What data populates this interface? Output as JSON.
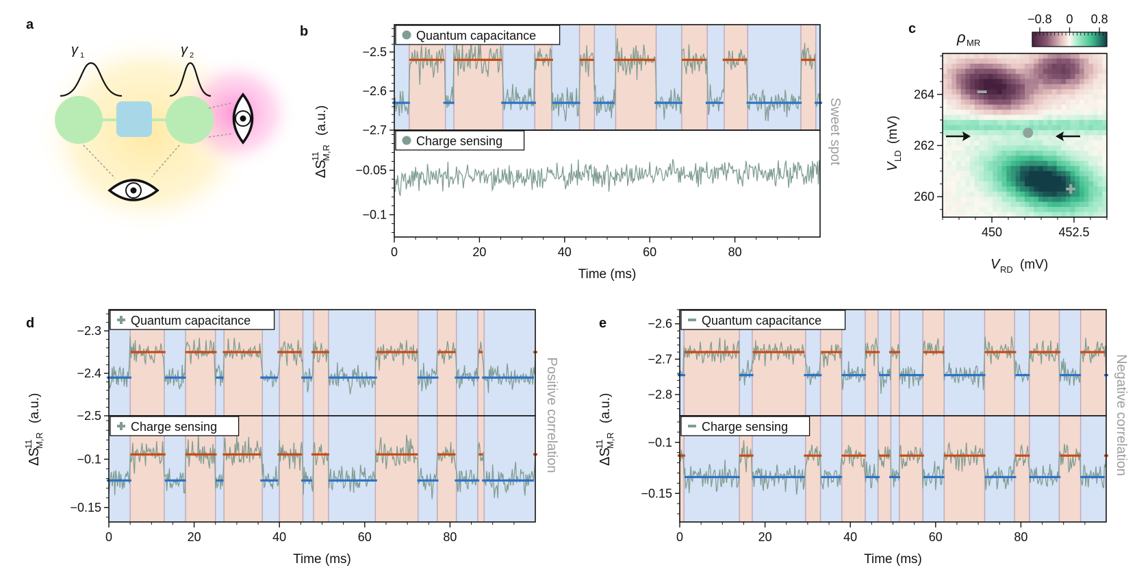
{
  "panel_letters": [
    "a",
    "b",
    "c",
    "d",
    "e"
  ],
  "panel_a": {
    "gamma1": "γ",
    "gamma1_sub": "1",
    "gamma2": "γ",
    "gamma2_sub": "2"
  },
  "colors": {
    "trace": "#7f9d92",
    "level_high": "#c84a14",
    "level_low": "#2c72c7",
    "band_high": "#f4d9cf",
    "band_low": "#d6e2f5",
    "dot_green": "#b9ecb4",
    "square_blue": "#a8d8e8"
  },
  "chart_data": [
    {
      "panel": "b",
      "type": "line",
      "xlabel": "Time (ms)",
      "ylabel": "ΔS",
      "ylabel_sup": "11",
      "ylabel_sub": "M,R",
      "ylabel_unit": "(a.u.)",
      "side_label": "Sweet spot",
      "xlim": [
        0,
        100
      ],
      "xticks": [
        0,
        20,
        40,
        60,
        80
      ],
      "top": {
        "legend": "Quantum capacitance",
        "marker": "circle",
        "ylim": [
          -2.7,
          -2.43
        ],
        "yticks": [
          -2.5,
          -2.6,
          -2.7
        ],
        "ytick_labels": [
          "−2.5",
          "−2.6",
          "−2.7"
        ],
        "level_high": -2.52,
        "level_low": -2.63,
        "noise": 0.03,
        "switch_times": [
          3.5,
          12,
          14,
          25.5,
          33,
          37,
          43.5,
          47,
          52,
          61.5,
          67.5,
          73.5,
          77.5,
          83,
          95.5,
          99
        ],
        "start_state": "low"
      },
      "bottom": {
        "legend": "Charge sensing",
        "marker": "circle",
        "ylim": [
          -0.125,
          -0.005
        ],
        "yticks": [
          -0.05,
          -0.1
        ],
        "ytick_labels": [
          "−0.05",
          "−0.1"
        ],
        "mean_start": -0.06,
        "mean_end": -0.052,
        "noise": 0.01
      }
    },
    {
      "panel": "c",
      "type": "heatmap",
      "title": "ρ",
      "title_sub": "MR",
      "colorbar_ticks": [
        -0.8,
        0,
        0.8
      ],
      "colorbar_tick_labels": [
        "−0.8",
        "0",
        "0.8"
      ],
      "xlabel": "V",
      "xlabel_sub": "RD",
      "xlabel_unit": "(mV)",
      "ylabel": "V",
      "ylabel_sub": "LD",
      "ylabel_unit": "(mV)",
      "xlim": [
        448.5,
        453.5
      ],
      "ylim": [
        259.2,
        265.6
      ],
      "xticks": [
        450,
        452.5
      ],
      "xtick_labels": [
        "450",
        "452.5"
      ],
      "yticks": [
        260,
        262,
        264
      ],
      "markers": [
        {
          "symbol": "−",
          "x": 449.7,
          "y": 264.1
        },
        {
          "symbol": "●",
          "x": 451.1,
          "y": 262.5
        },
        {
          "symbol": "+",
          "x": 452.4,
          "y": 260.3
        }
      ],
      "arrow_y": 262.5
    },
    {
      "panel": "d",
      "type": "line",
      "xlabel": "Time (ms)",
      "ylabel": "ΔS",
      "ylabel_sup": "11",
      "ylabel_sub": "M,R",
      "ylabel_unit": "(a.u.)",
      "side_label": "Positive correlation",
      "xlim": [
        0,
        100
      ],
      "xticks": [
        0,
        20,
        40,
        60,
        80
      ],
      "shared_switch_times": [
        5,
        13,
        18,
        25,
        27,
        36,
        40,
        45.5,
        48,
        51.5,
        62.5,
        72.5,
        77,
        81.5,
        86.5,
        88,
        100
      ],
      "start_state": "low",
      "top": {
        "legend": "Quantum capacitance",
        "marker": "plus",
        "ylim": [
          -2.5,
          -2.25
        ],
        "yticks": [
          -2.3,
          -2.4,
          -2.5
        ],
        "ytick_labels": [
          "−2.3",
          "−2.4",
          "−2.5"
        ],
        "level_high": -2.35,
        "level_low": -2.41,
        "noise": 0.022
      },
      "bottom": {
        "legend": "Charge sensing",
        "marker": "plus",
        "ylim": [
          -0.165,
          -0.055
        ],
        "yticks": [
          -0.1,
          -0.15
        ],
        "ytick_labels": [
          "−0.1",
          "−0.15"
        ],
        "level_high": -0.095,
        "level_low": -0.122,
        "noise": 0.011
      }
    },
    {
      "panel": "e",
      "type": "line",
      "xlabel": "Time (ms)",
      "ylabel": "ΔS",
      "ylabel_sup": "11",
      "ylabel_sub": "M,R",
      "ylabel_unit": "(a.u.)",
      "side_label": "Negative correlation",
      "xlim": [
        0,
        100
      ],
      "xticks": [
        0,
        20,
        40,
        60,
        80
      ],
      "shared_switch_times": [
        1,
        14,
        17,
        29.5,
        33,
        38,
        43.5,
        46.5,
        49.5,
        51.5,
        57,
        62,
        71.5,
        78.5,
        82,
        89,
        94,
        100
      ],
      "start_state": "low",
      "top": {
        "legend": "Quantum capacitance",
        "marker": "minus",
        "ylim": [
          -2.86,
          -2.56
        ],
        "yticks": [
          -2.6,
          -2.7,
          -2.8
        ],
        "ytick_labels": [
          "−2.6",
          "−2.7",
          "−2.8"
        ],
        "level_high": -2.68,
        "level_low": -2.745,
        "noise": 0.025
      },
      "bottom": {
        "legend": "Charge sensing",
        "marker": "minus",
        "ylim": [
          -0.178,
          -0.074
        ],
        "yticks": [
          -0.1,
          -0.15
        ],
        "ytick_labels": [
          "−0.1",
          "−0.15"
        ],
        "level_high": -0.113,
        "level_low": -0.134,
        "noise": 0.01,
        "inverted": true
      }
    }
  ]
}
